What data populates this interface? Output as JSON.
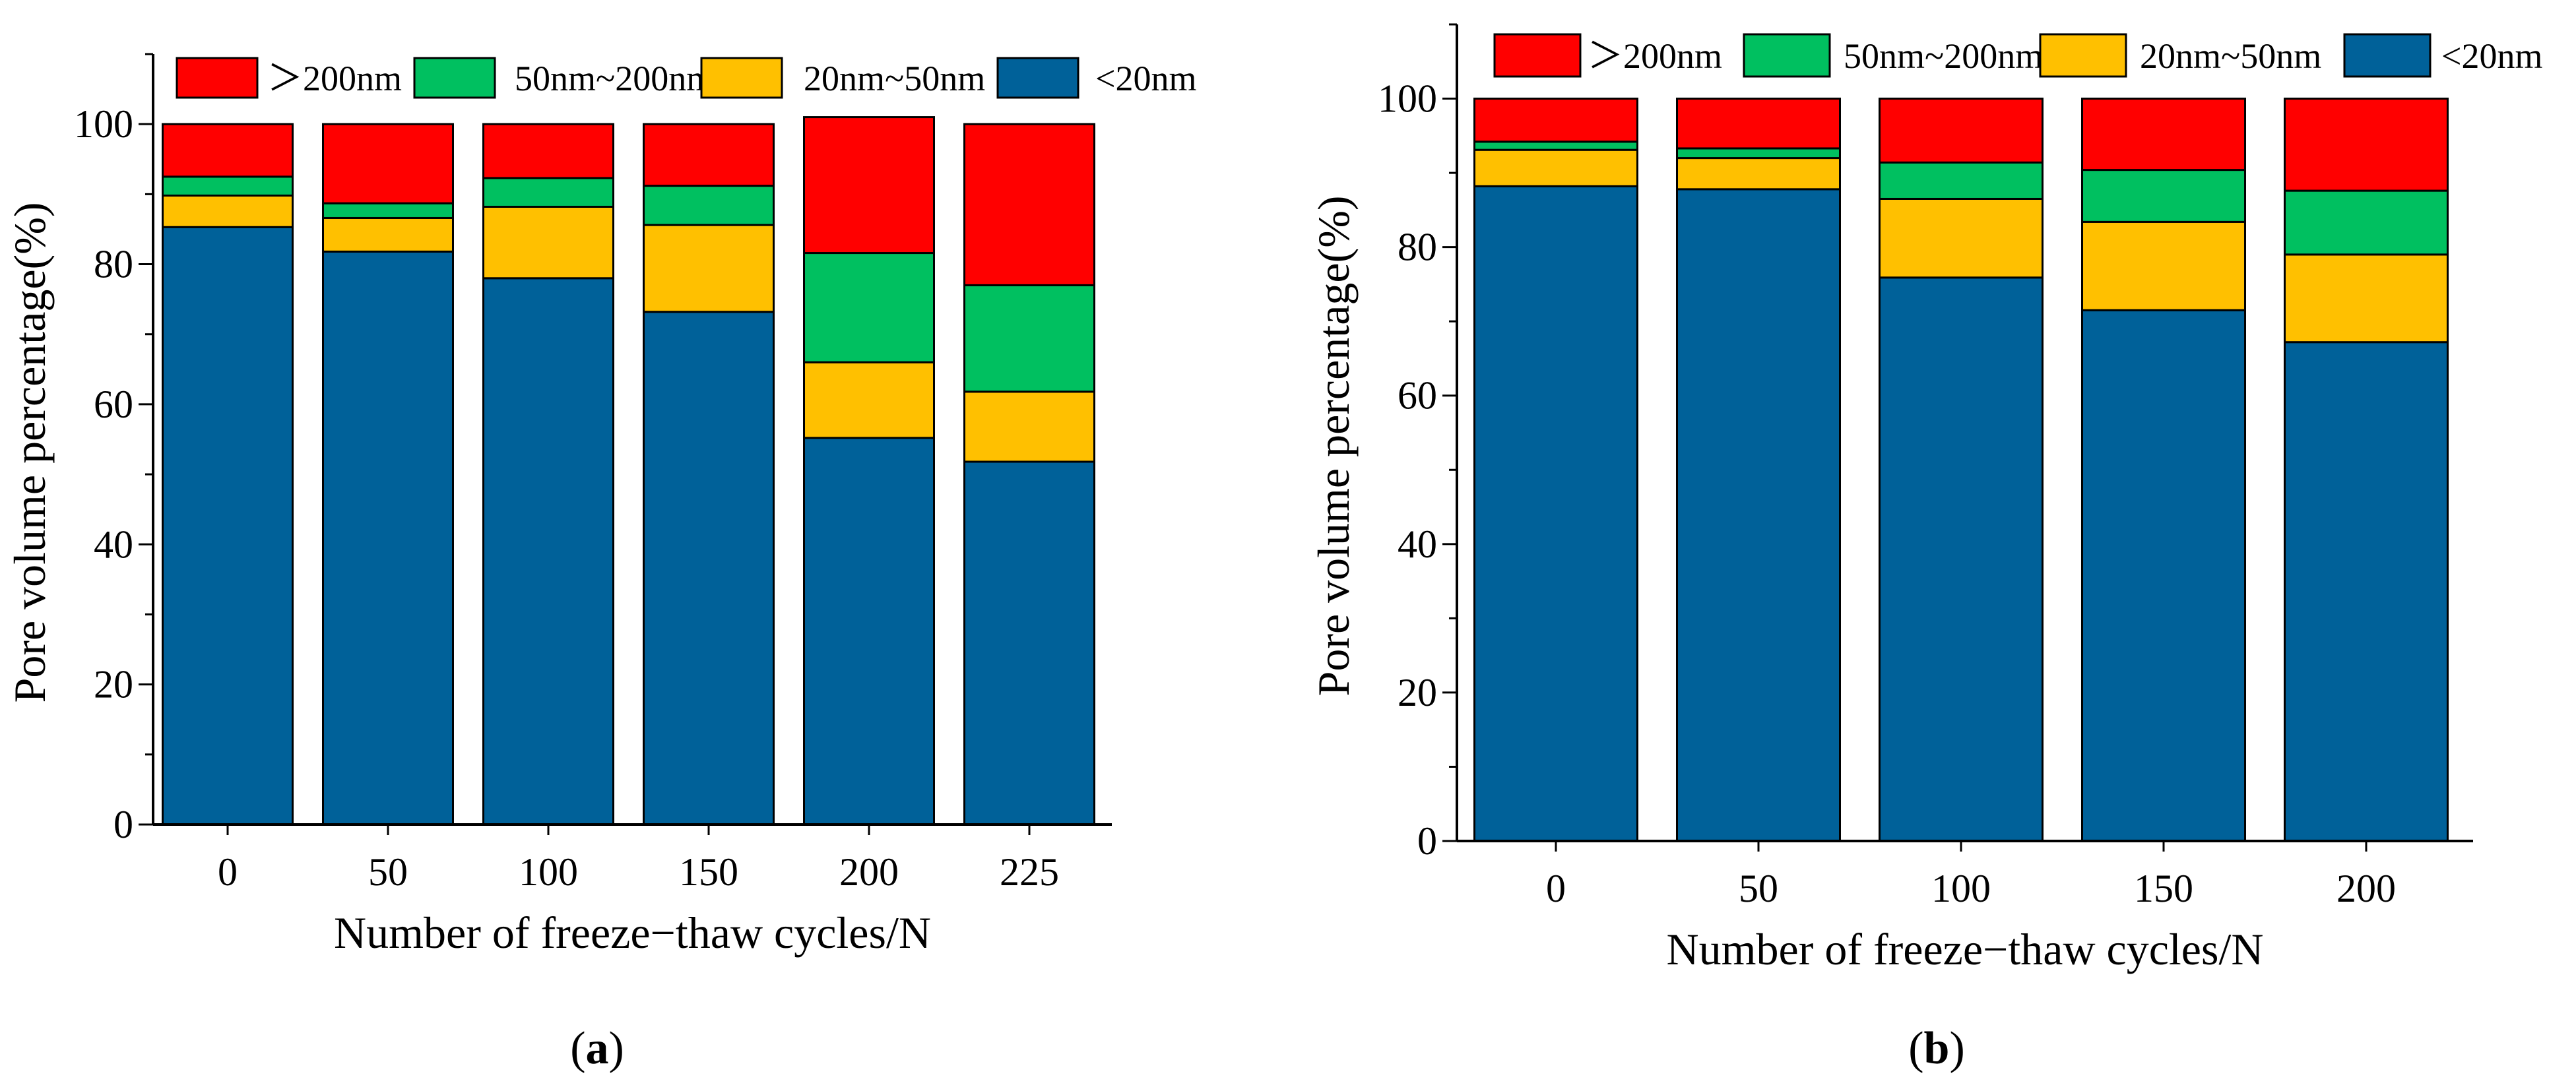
{
  "figure": {
    "captions": [
      {
        "open": "(",
        "letter": "a",
        "close": ")"
      },
      {
        "open": "(",
        "letter": "b",
        "close": ")"
      }
    ]
  },
  "chart_data": [
    {
      "type": "bar",
      "stacked": true,
      "panel": "a",
      "categories": [
        "0",
        "50",
        "100",
        "150",
        "200",
        "225"
      ],
      "series": [
        {
          "name": "<20nm",
          "legend_label": "<20nm",
          "color": "#006199",
          "values": [
            85.3,
            81.8,
            78.0,
            73.2,
            55.2,
            51.8
          ]
        },
        {
          "name": "20nm~50nm",
          "legend_label": "20nm~50nm",
          "color": "#FFC000",
          "values": [
            4.5,
            4.8,
            10.2,
            12.4,
            10.8,
            10.0
          ]
        },
        {
          "name": "50nm~200nm",
          "legend_label": "50nm~200nm",
          "color": "#00C060",
          "values": [
            2.7,
            2.1,
            4.1,
            5.6,
            15.6,
            15.2
          ]
        },
        {
          "name": ">200nm",
          "legend_label": "＞200nm",
          "color": "#FF0000",
          "values": [
            7.5,
            11.3,
            7.7,
            8.8,
            19.4,
            23.0
          ]
        }
      ],
      "legend_order": [
        ">200nm",
        "50nm~200nm",
        "20nm~50nm",
        "<20nm"
      ],
      "xlabel": "Number of freeze−thaw cycles/N",
      "ylabel": "Pore volume percentage(%)",
      "ylim": [
        0,
        110
      ],
      "yticks": [
        0,
        20,
        40,
        60,
        80,
        100
      ],
      "yminor_step": 10,
      "legend_position": "top"
    },
    {
      "type": "bar",
      "stacked": true,
      "panel": "b",
      "categories": [
        "0",
        "50",
        "100",
        "150",
        "200"
      ],
      "series": [
        {
          "name": "<20nm",
          "legend_label": "<20nm",
          "color": "#006199",
          "values": [
            88.2,
            87.8,
            75.9,
            71.5,
            67.2
          ]
        },
        {
          "name": "20nm~50nm",
          "legend_label": "20nm~50nm",
          "color": "#FFC000",
          "values": [
            4.9,
            4.2,
            10.6,
            11.9,
            11.8
          ]
        },
        {
          "name": "50nm~200nm",
          "legend_label": "50nm~200nm",
          "color": "#00C060",
          "values": [
            1.1,
            1.3,
            4.9,
            7.0,
            8.6
          ]
        },
        {
          "name": ">200nm",
          "legend_label": "＞200nm",
          "color": "#FF0000",
          "values": [
            5.8,
            6.7,
            8.6,
            9.6,
            12.4
          ]
        }
      ],
      "legend_order": [
        ">200nm",
        "50nm~200nm",
        "20nm~50nm",
        "<20nm"
      ],
      "xlabel": "Number of freeze−thaw cycles/N",
      "ylabel": "Pore volume percentage(%)",
      "ylim": [
        0,
        110
      ],
      "yticks": [
        0,
        20,
        40,
        60,
        80,
        100
      ],
      "yminor_step": 10,
      "legend_position": "top"
    }
  ]
}
